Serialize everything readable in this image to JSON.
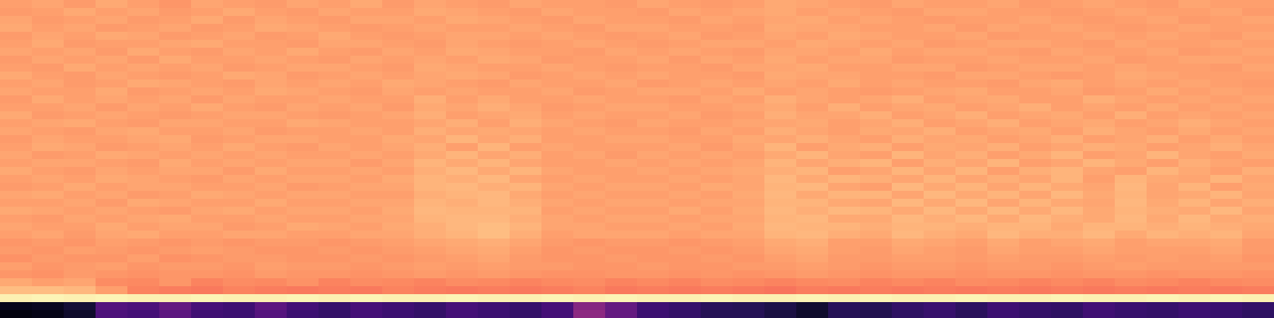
{
  "chart_data": {
    "type": "heatmap",
    "tick_labels": false,
    "zlim": [
      0,
      100
    ],
    "z": [
      [
        80,
        81,
        79,
        82,
        80,
        78,
        81,
        80,
        79,
        81,
        80,
        82,
        79,
        81,
        80,
        79,
        81,
        80,
        80,
        79,
        81,
        80,
        79,
        80,
        82,
        81,
        80,
        79,
        81,
        80,
        80,
        81,
        79,
        80,
        81,
        80,
        79,
        81,
        80,
        80
      ],
      [
        79,
        80,
        82,
        80,
        81,
        79,
        80,
        82,
        80,
        79,
        81,
        80,
        80,
        82,
        81,
        80,
        79,
        81,
        80,
        80,
        79,
        81,
        80,
        81,
        82,
        80,
        81,
        80,
        79,
        81,
        81,
        80,
        80,
        79,
        80,
        81,
        80,
        80,
        81,
        79
      ],
      [
        81,
        79,
        80,
        81,
        79,
        80,
        82,
        79,
        81,
        80,
        79,
        81,
        81,
        80,
        82,
        81,
        80,
        79,
        81,
        80,
        80,
        79,
        81,
        80,
        81,
        82,
        80,
        81,
        80,
        79,
        80,
        80,
        81,
        80,
        79,
        80,
        81,
        79,
        80,
        81
      ],
      [
        82,
        80,
        81,
        79,
        80,
        81,
        79,
        80,
        82,
        81,
        80,
        79,
        80,
        81,
        80,
        80,
        81,
        80,
        79,
        81,
        81,
        80,
        80,
        79,
        82,
        81,
        81,
        80,
        80,
        81,
        79,
        81,
        80,
        81,
        80,
        79,
        80,
        81,
        80,
        80
      ],
      [
        79,
        81,
        80,
        82,
        81,
        79,
        80,
        81,
        79,
        80,
        82,
        80,
        79,
        80,
        81,
        81,
        80,
        81,
        80,
        79,
        80,
        81,
        79,
        80,
        81,
        80,
        82,
        81,
        80,
        80,
        81,
        79,
        80,
        80,
        81,
        80,
        81,
        80,
        79,
        81
      ],
      [
        80,
        82,
        79,
        80,
        80,
        81,
        82,
        80,
        80,
        79,
        81,
        81,
        80,
        79,
        81,
        80,
        79,
        80,
        81,
        80,
        79,
        80,
        81,
        81,
        80,
        82,
        81,
        80,
        81,
        79,
        80,
        81,
        81,
        80,
        79,
        81,
        80,
        80,
        81,
        80
      ],
      [
        81,
        80,
        81,
        79,
        82,
        80,
        79,
        81,
        80,
        82,
        80,
        79,
        81,
        80,
        82,
        81,
        80,
        80,
        79,
        81,
        80,
        81,
        80,
        79,
        81,
        81,
        80,
        82,
        80,
        81,
        81,
        80,
        79,
        81,
        80,
        80,
        81,
        79,
        80,
        81
      ],
      [
        79,
        81,
        80,
        81,
        79,
        82,
        80,
        80,
        81,
        80,
        79,
        81,
        80,
        81,
        80,
        82,
        81,
        79,
        80,
        80,
        81,
        79,
        81,
        80,
        82,
        80,
        81,
        81,
        79,
        80,
        80,
        81,
        80,
        80,
        81,
        79,
        80,
        81,
        81,
        80
      ],
      [
        80,
        79,
        82,
        80,
        81,
        80,
        81,
        79,
        80,
        81,
        81,
        80,
        79,
        82,
        81,
        80,
        80,
        81,
        80,
        79,
        80,
        80,
        79,
        81,
        81,
        82,
        80,
        80,
        81,
        81,
        79,
        80,
        81,
        81,
        80,
        81,
        80,
        80,
        79,
        81
      ],
      [
        82,
        80,
        79,
        81,
        80,
        79,
        80,
        82,
        81,
        79,
        80,
        81,
        80,
        81,
        82,
        81,
        79,
        80,
        81,
        80,
        81,
        80,
        80,
        79,
        82,
        81,
        81,
        80,
        80,
        79,
        81,
        81,
        80,
        79,
        80,
        82,
        81,
        80,
        80,
        80
      ],
      [
        80,
        81,
        79,
        80,
        82,
        81,
        80,
        79,
        81,
        80,
        81,
        80,
        82,
        81,
        80,
        79,
        81,
        80,
        80,
        81,
        79,
        80,
        81,
        80,
        81,
        80,
        82,
        80,
        81,
        80,
        80,
        79,
        81,
        82,
        80,
        81,
        80,
        81,
        80,
        79
      ],
      [
        81,
        80,
        80,
        82,
        79,
        80,
        81,
        80,
        82,
        81,
        80,
        79,
        81,
        80,
        81,
        80,
        80,
        81,
        79,
        80,
        81,
        81,
        80,
        82,
        80,
        81,
        80,
        79,
        80,
        81,
        82,
        80,
        80,
        81,
        79,
        80,
        82,
        80,
        81,
        80
      ],
      [
        79,
        82,
        80,
        81,
        80,
        81,
        79,
        81,
        80,
        80,
        81,
        80,
        80,
        83,
        80,
        82,
        80,
        80,
        81,
        80,
        80,
        79,
        81,
        80,
        83,
        81,
        80,
        81,
        83,
        80,
        81,
        82,
        80,
        80,
        83,
        81,
        80,
        81,
        80,
        81
      ],
      [
        80,
        80,
        81,
        79,
        81,
        80,
        82,
        80,
        79,
        81,
        80,
        81,
        79,
        82,
        81,
        83,
        81,
        79,
        80,
        81,
        81,
        80,
        80,
        81,
        82,
        80,
        83,
        80,
        81,
        82,
        80,
        81,
        83,
        80,
        81,
        80,
        82,
        80,
        81,
        80
      ],
      [
        82,
        79,
        80,
        81,
        80,
        79,
        80,
        81,
        81,
        80,
        79,
        80,
        81,
        83,
        80,
        81,
        82,
        80,
        81,
        80,
        80,
        81,
        79,
        80,
        83,
        81,
        81,
        83,
        80,
        81,
        83,
        80,
        81,
        82,
        80,
        83,
        80,
        81,
        80,
        81
      ],
      [
        80,
        81,
        82,
        80,
        79,
        81,
        81,
        80,
        80,
        82,
        81,
        80,
        80,
        81,
        83,
        80,
        83,
        81,
        80,
        79,
        81,
        80,
        80,
        81,
        81,
        82,
        80,
        81,
        83,
        80,
        81,
        83,
        80,
        81,
        82,
        80,
        81,
        83,
        81,
        80
      ],
      [
        81,
        80,
        79,
        81,
        82,
        80,
        80,
        81,
        79,
        80,
        80,
        81,
        80,
        83,
        81,
        82,
        81,
        80,
        81,
        80,
        80,
        79,
        81,
        80,
        83,
        81,
        80,
        82,
        81,
        83,
        80,
        81,
        82,
        80,
        83,
        81,
        80,
        82,
        80,
        81
      ],
      [
        79,
        81,
        80,
        80,
        81,
        82,
        79,
        80,
        81,
        81,
        80,
        80,
        82,
        81,
        84,
        81,
        83,
        80,
        80,
        81,
        81,
        80,
        80,
        82,
        81,
        83,
        81,
        80,
        83,
        81,
        82,
        80,
        81,
        83,
        80,
        81,
        83,
        80,
        82,
        80
      ],
      [
        80,
        82,
        81,
        79,
        80,
        81,
        80,
        82,
        80,
        79,
        81,
        80,
        81,
        83,
        80,
        84,
        80,
        81,
        80,
        80,
        80,
        81,
        79,
        81,
        84,
        80,
        82,
        83,
        80,
        82,
        81,
        83,
        80,
        81,
        83,
        82,
        80,
        81,
        83,
        81
      ],
      [
        81,
        79,
        80,
        82,
        81,
        80,
        81,
        80,
        81,
        80,
        80,
        81,
        80,
        82,
        84,
        81,
        83,
        80,
        81,
        79,
        81,
        80,
        81,
        80,
        82,
        84,
        81,
        80,
        84,
        81,
        83,
        80,
        82,
        84,
        80,
        81,
        84,
        81,
        80,
        82
      ],
      [
        80,
        81,
        81,
        80,
        79,
        82,
        80,
        81,
        80,
        81,
        81,
        79,
        81,
        84,
        82,
        84,
        81,
        80,
        80,
        81,
        80,
        81,
        80,
        81,
        84,
        81,
        83,
        84,
        80,
        83,
        81,
        84,
        80,
        81,
        84,
        82,
        80,
        83,
        81,
        80
      ],
      [
        82,
        80,
        79,
        81,
        80,
        81,
        81,
        79,
        82,
        80,
        80,
        81,
        80,
        83,
        85,
        82,
        84,
        81,
        80,
        80,
        81,
        80,
        81,
        82,
        83,
        84,
        80,
        81,
        84,
        81,
        84,
        80,
        83,
        84,
        81,
        80,
        84,
        82,
        80,
        83
      ],
      [
        80,
        81,
        80,
        82,
        81,
        80,
        79,
        81,
        80,
        81,
        81,
        80,
        82,
        84,
        83,
        85,
        81,
        80,
        81,
        80,
        80,
        81,
        80,
        81,
        85,
        82,
        84,
        83,
        81,
        84,
        81,
        83,
        81,
        84,
        80,
        84,
        82,
        81,
        84,
        81
      ],
      [
        79,
        80,
        82,
        80,
        81,
        81,
        80,
        80,
        81,
        79,
        80,
        81,
        81,
        84,
        85,
        83,
        84,
        81,
        80,
        81,
        81,
        80,
        82,
        81,
        84,
        85,
        81,
        80,
        85,
        82,
        84,
        81,
        84,
        82,
        81,
        85,
        81,
        84,
        80,
        82
      ],
      [
        81,
        82,
        80,
        81,
        79,
        80,
        82,
        81,
        80,
        81,
        81,
        80,
        80,
        83,
        84,
        85,
        82,
        80,
        81,
        80,
        80,
        81,
        80,
        82,
        85,
        82,
        84,
        84,
        81,
        85,
        82,
        84,
        81,
        85,
        82,
        84,
        81,
        82,
        84,
        81
      ],
      [
        80,
        80,
        81,
        79,
        82,
        81,
        80,
        80,
        82,
        80,
        80,
        81,
        81,
        84,
        83,
        85,
        83,
        81,
        80,
        81,
        81,
        80,
        81,
        81,
        84,
        84,
        82,
        81,
        85,
        82,
        85,
        81,
        84,
        82,
        81,
        85,
        82,
        84,
        81,
        83
      ],
      [
        82,
        81,
        80,
        81,
        80,
        79,
        81,
        82,
        80,
        81,
        81,
        80,
        82,
        85,
        84,
        84,
        84,
        80,
        81,
        80,
        80,
        82,
        80,
        82,
        85,
        83,
        85,
        84,
        82,
        85,
        82,
        85,
        82,
        85,
        82,
        84,
        83,
        82,
        85,
        81
      ],
      [
        80,
        79,
        81,
        80,
        81,
        82,
        80,
        80,
        81,
        80,
        80,
        81,
        81,
        84,
        85,
        85,
        83,
        81,
        80,
        81,
        81,
        80,
        81,
        81,
        84,
        85,
        82,
        82,
        85,
        83,
        85,
        82,
        85,
        83,
        82,
        85,
        82,
        85,
        82,
        83
      ],
      [
        81,
        80,
        80,
        82,
        80,
        81,
        81,
        79,
        80,
        82,
        81,
        80,
        82,
        83,
        85,
        86,
        84,
        81,
        81,
        80,
        80,
        81,
        80,
        82,
        85,
        84,
        84,
        83,
        84,
        84,
        83,
        84,
        84,
        82,
        84,
        84,
        83,
        84,
        83,
        82
      ],
      [
        80,
        81,
        79,
        81,
        82,
        80,
        80,
        81,
        81,
        80,
        80,
        81,
        81,
        83,
        84,
        86,
        83,
        80,
        81,
        81,
        81,
        80,
        81,
        81,
        84,
        85,
        83,
        82,
        85,
        83,
        82,
        85,
        83,
        83,
        85,
        82,
        84,
        83,
        84,
        81
      ],
      [
        78,
        79,
        78,
        80,
        79,
        78,
        79,
        78,
        79,
        79,
        78,
        79,
        80,
        81,
        82,
        83,
        81,
        79,
        78,
        79,
        79,
        78,
        79,
        80,
        82,
        83,
        80,
        80,
        82,
        81,
        80,
        82,
        80,
        81,
        82,
        80,
        81,
        81,
        82,
        79
      ],
      [
        79,
        78,
        80,
        79,
        78,
        79,
        80,
        79,
        78,
        78,
        79,
        78,
        79,
        80,
        81,
        82,
        80,
        78,
        79,
        78,
        78,
        79,
        78,
        79,
        81,
        82,
        80,
        79,
        81,
        80,
        79,
        81,
        80,
        80,
        81,
        80,
        80,
        80,
        81,
        79
      ],
      [
        77,
        79,
        78,
        78,
        80,
        77,
        78,
        79,
        79,
        78,
        78,
        79,
        78,
        79,
        80,
        81,
        79,
        78,
        78,
        79,
        78,
        78,
        79,
        78,
        80,
        81,
        79,
        79,
        80,
        80,
        79,
        80,
        79,
        79,
        80,
        79,
        80,
        79,
        80,
        78
      ],
      [
        80,
        78,
        79,
        80,
        78,
        79,
        79,
        78,
        80,
        79,
        79,
        78,
        79,
        80,
        79,
        80,
        79,
        79,
        78,
        78,
        79,
        78,
        78,
        79,
        79,
        80,
        79,
        78,
        79,
        79,
        78,
        79,
        79,
        78,
        79,
        80,
        79,
        79,
        79,
        79
      ],
      [
        78,
        77,
        79,
        78,
        77,
        78,
        78,
        77,
        79,
        78,
        78,
        77,
        78,
        79,
        78,
        79,
        78,
        77,
        77,
        78,
        78,
        77,
        78,
        77,
        78,
        79,
        78,
        77,
        78,
        78,
        77,
        78,
        78,
        77,
        78,
        78,
        77,
        78,
        78,
        77
      ],
      [
        82,
        80,
        81,
        76,
        75,
        78,
        74,
        76,
        75,
        77,
        74,
        76,
        75,
        74,
        76,
        75,
        74,
        75,
        76,
        74,
        75,
        74,
        76,
        75,
        74,
        75,
        76,
        74,
        75,
        74,
        76,
        75,
        74,
        75,
        74,
        76,
        75,
        74,
        75,
        76
      ],
      [
        86,
        86,
        85,
        80,
        74,
        73,
        72,
        74,
        73,
        72,
        73,
        72,
        74,
        73,
        72,
        73,
        72,
        73,
        74,
        72,
        73,
        72,
        73,
        72,
        71,
        73,
        72,
        73,
        72,
        73,
        72,
        73,
        72,
        73,
        72,
        73,
        72,
        73,
        72,
        73
      ],
      [
        97,
        98,
        97,
        98,
        97,
        97,
        98,
        97,
        97,
        98,
        97,
        98,
        97,
        97,
        98,
        97,
        97,
        98,
        97,
        98,
        97,
        97,
        98,
        97,
        97,
        98,
        97,
        98,
        97,
        97,
        98,
        97,
        97,
        98,
        97,
        97,
        98,
        97,
        98,
        97
      ],
      [
        5,
        6,
        10,
        26,
        24,
        30,
        23,
        21,
        28,
        22,
        19,
        23,
        21,
        19,
        23,
        21,
        19,
        23,
        38,
        30,
        21,
        19,
        16,
        15,
        13,
        9,
        16,
        15,
        18,
        20,
        17,
        21,
        19,
        18,
        22,
        20,
        19,
        21,
        20,
        18
      ],
      [
        3,
        4,
        8,
        24,
        22,
        28,
        21,
        20,
        26,
        20,
        18,
        22,
        20,
        18,
        22,
        20,
        18,
        22,
        40,
        30,
        20,
        18,
        15,
        15,
        12,
        8,
        15,
        14,
        17,
        19,
        16,
        20,
        18,
        17,
        21,
        19,
        18,
        20,
        19,
        17
      ]
    ]
  }
}
